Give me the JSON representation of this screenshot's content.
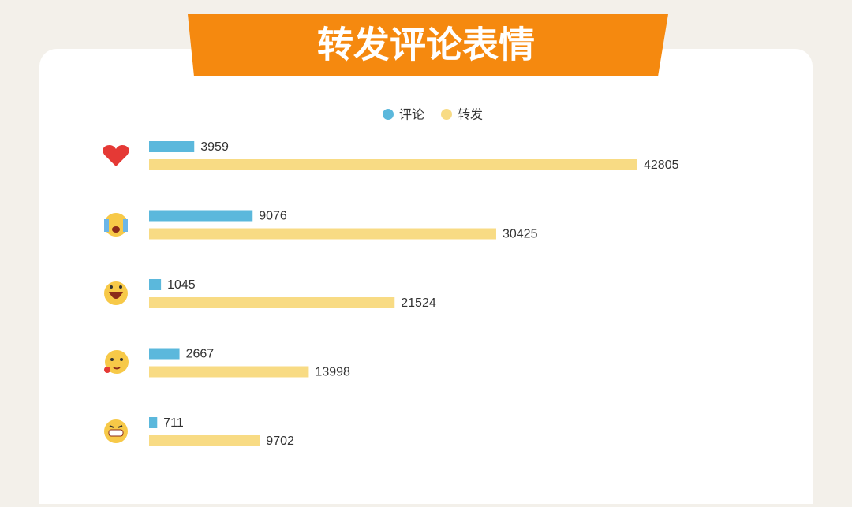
{
  "chart_data": {
    "type": "hbar-grouped",
    "title": "转发评论表情",
    "categories": [
      null,
      null,
      null,
      null,
      null
    ],
    "series": [
      {
        "name": "评论",
        "color": "#5bb8dc",
        "values": [
          3959,
          9076,
          1045,
          2667,
          711
        ]
      },
      {
        "name": "转发",
        "color": "#f8db84",
        "values": [
          42805,
          30425,
          21524,
          13998,
          9702
        ]
      }
    ]
  }
}
